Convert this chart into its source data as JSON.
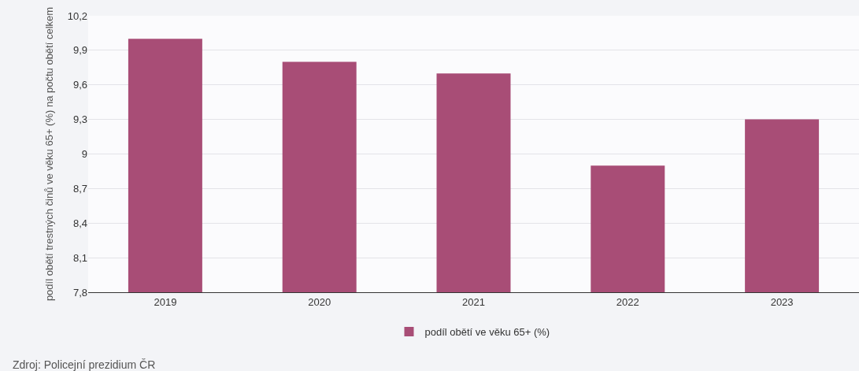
{
  "chart_data": {
    "type": "bar",
    "ylabel": "podíl obětí trestných činů ve věku 65+ (%) na počtu obětí celkem",
    "categories": [
      "2019",
      "2020",
      "2021",
      "2022",
      "2023"
    ],
    "series": [
      {
        "name": "podíl obětí ve věku 65+ (%)",
        "color": "#a84d76",
        "values": [
          10.0,
          9.8,
          9.7,
          8.9,
          9.3
        ]
      }
    ],
    "ylim": [
      7.8,
      10.2
    ],
    "yticks": [
      {
        "value": 7.8,
        "label": "7,8"
      },
      {
        "value": 8.1,
        "label": "8,1"
      },
      {
        "value": 8.4,
        "label": "8,4"
      },
      {
        "value": 8.7,
        "label": "8,7"
      },
      {
        "value": 9,
        "label": "9"
      },
      {
        "value": 9.3,
        "label": "9,3"
      },
      {
        "value": 9.6,
        "label": "9,6"
      },
      {
        "value": 9.9,
        "label": "9,9"
      },
      {
        "value": 10.2,
        "label": "10,2"
      }
    ],
    "grid": "y",
    "legend": "bottom",
    "annotations": [
      "Zdroj: Policejní prezidium ČR"
    ]
  }
}
